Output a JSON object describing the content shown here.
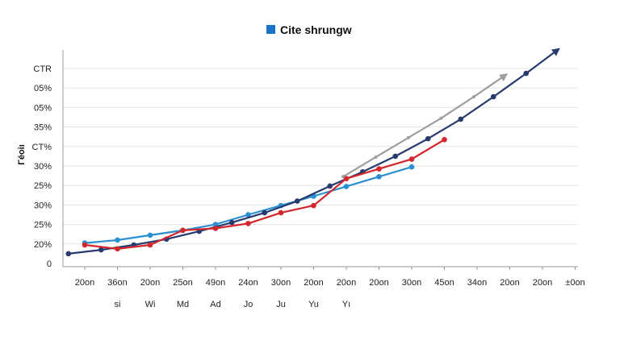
{
  "chart_data": {
    "type": "line",
    "title": "",
    "ylabel": "Γéoiı",
    "xlabel": "",
    "legend": {
      "position": "top-center",
      "entries": [
        {
          "label": "Cite shrungw",
          "color": "#1a73c8"
        }
      ]
    },
    "y_tick_labels": [
      "CTR",
      "05%",
      "05%",
      "35%",
      "CT%",
      "30%",
      "25%",
      "30%",
      "25%",
      "20%",
      "0"
    ],
    "x_tick_labels": [
      "20on",
      "36on",
      "20on",
      "25on",
      "49on",
      "24on",
      "30on",
      "20on",
      "20on",
      "20on",
      "30on",
      "45on",
      "34on",
      "20on",
      "20on",
      "±0on"
    ],
    "x_sub_labels": [
      "si",
      "Wi",
      "Md",
      "Ad",
      "Jo",
      "Ju",
      "Yu",
      "Yı"
    ],
    "grid": true,
    "ylim": [
      0,
      10
    ],
    "series": [
      {
        "color": "#2a8fd0",
        "values": [
          1.05,
          1.2,
          1.45,
          1.7,
          2.0,
          2.5,
          2.97,
          3.45,
          3.95,
          4.45,
          4.95
        ]
      },
      {
        "color": "#263a6e",
        "values": [
          0.5,
          0.7,
          0.95,
          1.25,
          1.65,
          2.1,
          2.6,
          3.2,
          3.97,
          4.7,
          5.5,
          6.4,
          7.4,
          8.55,
          9.75,
          11.0
        ]
      },
      {
        "color": "#d3262d",
        "values": [
          0.95,
          0.75,
          0.95,
          1.7,
          1.8,
          2.05,
          2.6,
          2.97,
          4.35,
          4.85,
          5.35,
          6.35
        ]
      },
      {
        "color": "#9e9e9e",
        "values": [
          4.45,
          5.45,
          6.45,
          7.45,
          8.55,
          9.7
        ]
      }
    ]
  }
}
